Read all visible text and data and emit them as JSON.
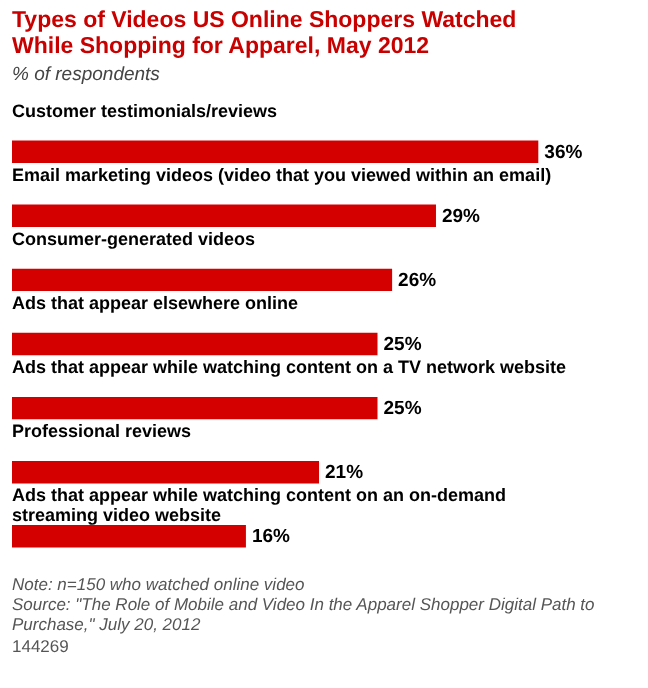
{
  "chart_data": {
    "type": "bar",
    "orientation": "horizontal",
    "title": "Types of Videos US Online Shoppers Watched While Shopping for Apparel, May 2012",
    "subtitle": "% of respondents",
    "categories": [
      "Customer testimonials/reviews",
      "Email marketing videos (video that you viewed within an email)",
      "Consumer-generated videos",
      "Ads that appear elsewhere online",
      "Ads that appear while watching content on a TV network website",
      "Professional reviews",
      "Ads that appear while watching content on an on-demand streaming video website"
    ],
    "values": [
      36,
      29,
      26,
      25,
      25,
      21,
      16
    ],
    "value_labels": [
      "36%",
      "29%",
      "26%",
      "25%",
      "25%",
      "21%",
      "16%"
    ],
    "color": "#d40000",
    "annotations": [
      "Note: n=150 who watched online video",
      "Source: \"The Role of Mobile and Video In the Apparel Shopper Digital Path to Purchase,\" July 20, 2012",
      "144269"
    ]
  }
}
